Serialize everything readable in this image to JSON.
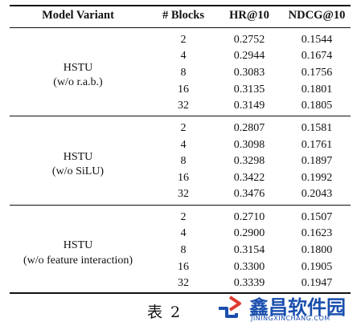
{
  "table": {
    "headers": {
      "model": "Model Variant",
      "blocks": "# Blocks",
      "hr": "HR@10",
      "ndcg": "NDCG@10"
    },
    "groups": [
      {
        "name_line1": "HSTU",
        "name_line2": "(w/o r.a.b.)",
        "rows": [
          {
            "blocks": "2",
            "hr": "0.2752",
            "ndcg": "0.1544"
          },
          {
            "blocks": "4",
            "hr": "0.2944",
            "ndcg": "0.1674"
          },
          {
            "blocks": "8",
            "hr": "0.3083",
            "ndcg": "0.1756"
          },
          {
            "blocks": "16",
            "hr": "0.3135",
            "ndcg": "0.1801"
          },
          {
            "blocks": "32",
            "hr": "0.3149",
            "ndcg": "0.1805"
          }
        ]
      },
      {
        "name_line1": "HSTU",
        "name_line2": "(w/o SiLU)",
        "rows": [
          {
            "blocks": "2",
            "hr": "0.2807",
            "ndcg": "0.1581"
          },
          {
            "blocks": "4",
            "hr": "0.3098",
            "ndcg": "0.1761"
          },
          {
            "blocks": "8",
            "hr": "0.3298",
            "ndcg": "0.1897"
          },
          {
            "blocks": "16",
            "hr": "0.3422",
            "ndcg": "0.1992"
          },
          {
            "blocks": "32",
            "hr": "0.3476",
            "ndcg": "0.2043"
          }
        ]
      },
      {
        "name_line1": "HSTU",
        "name_line2": "(w/o feature interaction)",
        "rows": [
          {
            "blocks": "2",
            "hr": "0.2710",
            "ndcg": "0.1507"
          },
          {
            "blocks": "4",
            "hr": "0.2900",
            "ndcg": "0.1623"
          },
          {
            "blocks": "8",
            "hr": "0.3154",
            "ndcg": "0.1800"
          },
          {
            "blocks": "16",
            "hr": "0.3300",
            "ndcg": "0.1905"
          },
          {
            "blocks": "32",
            "hr": "0.3339",
            "ndcg": "0.1947"
          }
        ]
      }
    ]
  },
  "caption": "表 2",
  "watermark": {
    "name": "鑫昌软件园",
    "domain": "JININGXINCHANG.COM",
    "brand_color": "#1a4fae",
    "accent_color": "#e03a2f"
  }
}
